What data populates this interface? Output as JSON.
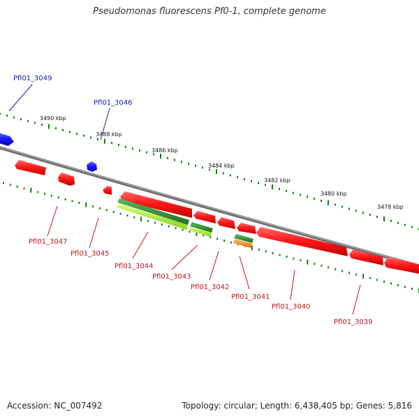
{
  "title": "Pseudomonas fluorescens Pf0-1, complete genome",
  "footer": {
    "accession": "Accession: NC_007492",
    "summary": "Topology: circular; Length: 6,438,405 bp; Genes: 5,816"
  },
  "colors": {
    "backbone": "#7a7a7a",
    "gene_forward": "#1a1aff",
    "gene_reverse": "#ff1a1a",
    "ticks": "#1a7a1a",
    "label_forward": "#1a1aa8",
    "label_reverse": "#c0141c",
    "feature_dark_green": "#2e8b2e",
    "feature_light_green": "#aef03a",
    "feature_orange": "#ff8c1a"
  },
  "scale": {
    "unit": "kbp",
    "ticks": [
      {
        "label": "3490 kbp",
        "kbp": 3490
      },
      {
        "label": "3488 kbp",
        "kbp": 3488
      },
      {
        "label": "3486 kbp",
        "kbp": 3486
      },
      {
        "label": "3484 kbp",
        "kbp": 3484
      },
      {
        "label": "3482 kbp",
        "kbp": 3482
      },
      {
        "label": "3480 kbp",
        "kbp": 3480
      },
      {
        "label": "3478 kbp",
        "kbp": 3478
      }
    ]
  },
  "genes_forward": [
    {
      "id": "Pfl01_3049"
    },
    {
      "id": "Pfl01_3046"
    }
  ],
  "genes_reverse": [
    {
      "id": "Pfl01_3047"
    },
    {
      "id": "Pfl01_3045"
    },
    {
      "id": "Pfl01_3044"
    },
    {
      "id": "Pfl01_3043"
    },
    {
      "id": "Pfl01_3042"
    },
    {
      "id": "Pfl01_3041"
    },
    {
      "id": "Pfl01_3040"
    },
    {
      "id": "Pfl01_3039"
    }
  ]
}
